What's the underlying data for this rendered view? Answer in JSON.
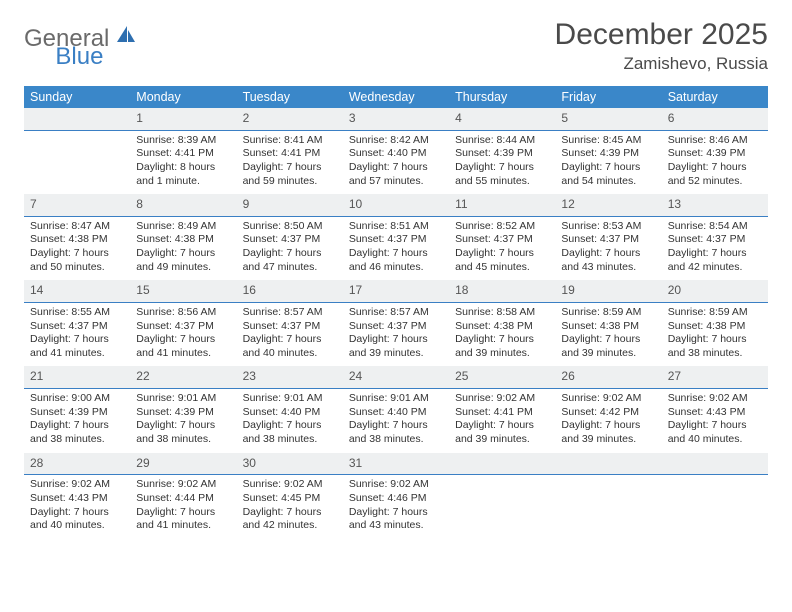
{
  "brand": {
    "main": "General",
    "accent": "Blue"
  },
  "title": "December 2025",
  "location": "Zamishevo, Russia",
  "colors": {
    "header_bg": "#3a87c9",
    "header_text": "#ffffff",
    "daynum_bg": "#eef0f1",
    "daynum_border": "#3a7fc4",
    "text": "#333333",
    "brand_gray": "#6a6a6a",
    "brand_blue": "#3a7fc4"
  },
  "day_headers": [
    "Sunday",
    "Monday",
    "Tuesday",
    "Wednesday",
    "Thursday",
    "Friday",
    "Saturday"
  ],
  "weeks": [
    {
      "nums": [
        "",
        "1",
        "2",
        "3",
        "4",
        "5",
        "6"
      ],
      "cells": [
        null,
        {
          "sunrise": "Sunrise: 8:39 AM",
          "sunset": "Sunset: 4:41 PM",
          "day1": "Daylight: 8 hours",
          "day2": "and 1 minute."
        },
        {
          "sunrise": "Sunrise: 8:41 AM",
          "sunset": "Sunset: 4:41 PM",
          "day1": "Daylight: 7 hours",
          "day2": "and 59 minutes."
        },
        {
          "sunrise": "Sunrise: 8:42 AM",
          "sunset": "Sunset: 4:40 PM",
          "day1": "Daylight: 7 hours",
          "day2": "and 57 minutes."
        },
        {
          "sunrise": "Sunrise: 8:44 AM",
          "sunset": "Sunset: 4:39 PM",
          "day1": "Daylight: 7 hours",
          "day2": "and 55 minutes."
        },
        {
          "sunrise": "Sunrise: 8:45 AM",
          "sunset": "Sunset: 4:39 PM",
          "day1": "Daylight: 7 hours",
          "day2": "and 54 minutes."
        },
        {
          "sunrise": "Sunrise: 8:46 AM",
          "sunset": "Sunset: 4:39 PM",
          "day1": "Daylight: 7 hours",
          "day2": "and 52 minutes."
        }
      ]
    },
    {
      "nums": [
        "7",
        "8",
        "9",
        "10",
        "11",
        "12",
        "13"
      ],
      "cells": [
        {
          "sunrise": "Sunrise: 8:47 AM",
          "sunset": "Sunset: 4:38 PM",
          "day1": "Daylight: 7 hours",
          "day2": "and 50 minutes."
        },
        {
          "sunrise": "Sunrise: 8:49 AM",
          "sunset": "Sunset: 4:38 PM",
          "day1": "Daylight: 7 hours",
          "day2": "and 49 minutes."
        },
        {
          "sunrise": "Sunrise: 8:50 AM",
          "sunset": "Sunset: 4:37 PM",
          "day1": "Daylight: 7 hours",
          "day2": "and 47 minutes."
        },
        {
          "sunrise": "Sunrise: 8:51 AM",
          "sunset": "Sunset: 4:37 PM",
          "day1": "Daylight: 7 hours",
          "day2": "and 46 minutes."
        },
        {
          "sunrise": "Sunrise: 8:52 AM",
          "sunset": "Sunset: 4:37 PM",
          "day1": "Daylight: 7 hours",
          "day2": "and 45 minutes."
        },
        {
          "sunrise": "Sunrise: 8:53 AM",
          "sunset": "Sunset: 4:37 PM",
          "day1": "Daylight: 7 hours",
          "day2": "and 43 minutes."
        },
        {
          "sunrise": "Sunrise: 8:54 AM",
          "sunset": "Sunset: 4:37 PM",
          "day1": "Daylight: 7 hours",
          "day2": "and 42 minutes."
        }
      ]
    },
    {
      "nums": [
        "14",
        "15",
        "16",
        "17",
        "18",
        "19",
        "20"
      ],
      "cells": [
        {
          "sunrise": "Sunrise: 8:55 AM",
          "sunset": "Sunset: 4:37 PM",
          "day1": "Daylight: 7 hours",
          "day2": "and 41 minutes."
        },
        {
          "sunrise": "Sunrise: 8:56 AM",
          "sunset": "Sunset: 4:37 PM",
          "day1": "Daylight: 7 hours",
          "day2": "and 41 minutes."
        },
        {
          "sunrise": "Sunrise: 8:57 AM",
          "sunset": "Sunset: 4:37 PM",
          "day1": "Daylight: 7 hours",
          "day2": "and 40 minutes."
        },
        {
          "sunrise": "Sunrise: 8:57 AM",
          "sunset": "Sunset: 4:37 PM",
          "day1": "Daylight: 7 hours",
          "day2": "and 39 minutes."
        },
        {
          "sunrise": "Sunrise: 8:58 AM",
          "sunset": "Sunset: 4:38 PM",
          "day1": "Daylight: 7 hours",
          "day2": "and 39 minutes."
        },
        {
          "sunrise": "Sunrise: 8:59 AM",
          "sunset": "Sunset: 4:38 PM",
          "day1": "Daylight: 7 hours",
          "day2": "and 39 minutes."
        },
        {
          "sunrise": "Sunrise: 8:59 AM",
          "sunset": "Sunset: 4:38 PM",
          "day1": "Daylight: 7 hours",
          "day2": "and 38 minutes."
        }
      ]
    },
    {
      "nums": [
        "21",
        "22",
        "23",
        "24",
        "25",
        "26",
        "27"
      ],
      "cells": [
        {
          "sunrise": "Sunrise: 9:00 AM",
          "sunset": "Sunset: 4:39 PM",
          "day1": "Daylight: 7 hours",
          "day2": "and 38 minutes."
        },
        {
          "sunrise": "Sunrise: 9:01 AM",
          "sunset": "Sunset: 4:39 PM",
          "day1": "Daylight: 7 hours",
          "day2": "and 38 minutes."
        },
        {
          "sunrise": "Sunrise: 9:01 AM",
          "sunset": "Sunset: 4:40 PM",
          "day1": "Daylight: 7 hours",
          "day2": "and 38 minutes."
        },
        {
          "sunrise": "Sunrise: 9:01 AM",
          "sunset": "Sunset: 4:40 PM",
          "day1": "Daylight: 7 hours",
          "day2": "and 38 minutes."
        },
        {
          "sunrise": "Sunrise: 9:02 AM",
          "sunset": "Sunset: 4:41 PM",
          "day1": "Daylight: 7 hours",
          "day2": "and 39 minutes."
        },
        {
          "sunrise": "Sunrise: 9:02 AM",
          "sunset": "Sunset: 4:42 PM",
          "day1": "Daylight: 7 hours",
          "day2": "and 39 minutes."
        },
        {
          "sunrise": "Sunrise: 9:02 AM",
          "sunset": "Sunset: 4:43 PM",
          "day1": "Daylight: 7 hours",
          "day2": "and 40 minutes."
        }
      ]
    },
    {
      "nums": [
        "28",
        "29",
        "30",
        "31",
        "",
        "",
        ""
      ],
      "cells": [
        {
          "sunrise": "Sunrise: 9:02 AM",
          "sunset": "Sunset: 4:43 PM",
          "day1": "Daylight: 7 hours",
          "day2": "and 40 minutes."
        },
        {
          "sunrise": "Sunrise: 9:02 AM",
          "sunset": "Sunset: 4:44 PM",
          "day1": "Daylight: 7 hours",
          "day2": "and 41 minutes."
        },
        {
          "sunrise": "Sunrise: 9:02 AM",
          "sunset": "Sunset: 4:45 PM",
          "day1": "Daylight: 7 hours",
          "day2": "and 42 minutes."
        },
        {
          "sunrise": "Sunrise: 9:02 AM",
          "sunset": "Sunset: 4:46 PM",
          "day1": "Daylight: 7 hours",
          "day2": "and 43 minutes."
        },
        null,
        null,
        null
      ]
    }
  ]
}
